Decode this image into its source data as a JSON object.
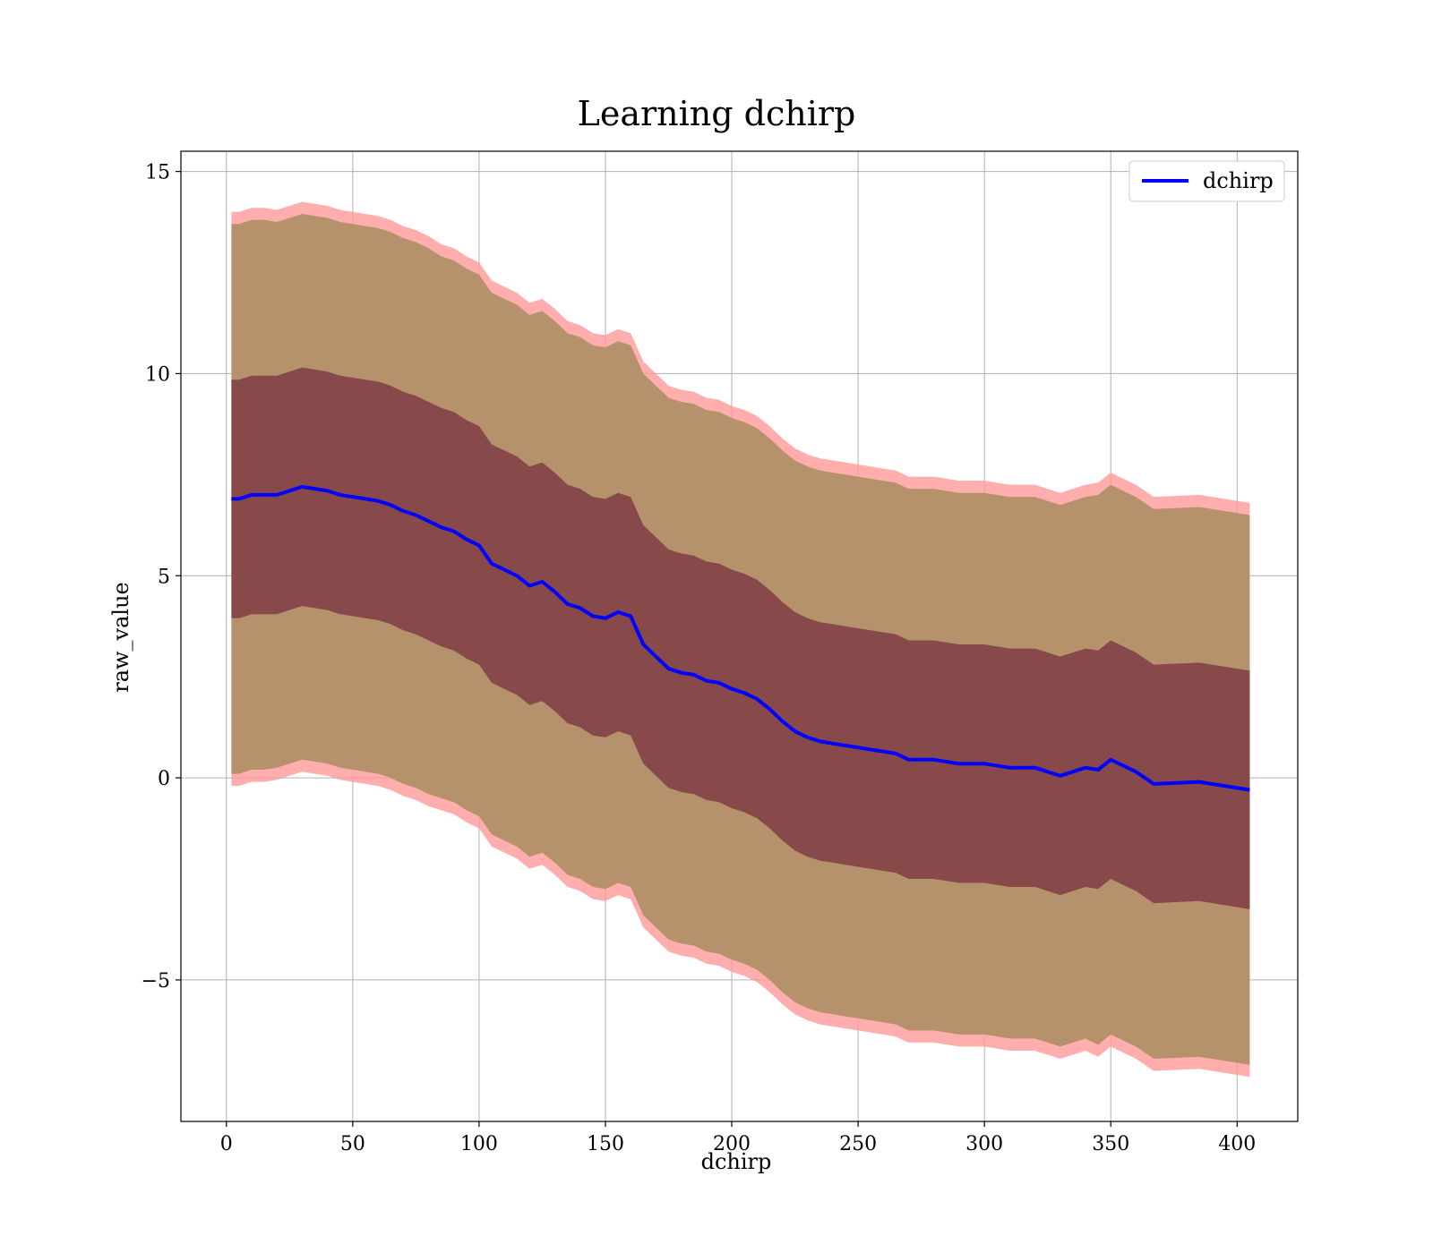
{
  "chart_data": {
    "type": "line",
    "title": "Learning dchirp",
    "xlabel": "dchirp",
    "ylabel": "raw_value",
    "xlim": [
      -18,
      424
    ],
    "ylim": [
      -8.5,
      15.5
    ],
    "xticks": [
      0,
      50,
      100,
      150,
      200,
      250,
      300,
      350,
      400
    ],
    "xtick_labels": [
      "0",
      "50",
      "100",
      "150",
      "200",
      "250",
      "300",
      "350",
      "400"
    ],
    "yticks": [
      -5,
      0,
      5,
      10,
      15
    ],
    "ytick_labels": [
      "−5",
      "0",
      "5",
      "10",
      "15"
    ],
    "grid": true,
    "legend": {
      "position": "top-right",
      "entries": [
        "dchirp"
      ]
    },
    "colors": {
      "line": "#0000ff",
      "outer_band": "#ff9999",
      "middle_band": "#b5926b",
      "inner_band": "#7a3040"
    },
    "series": [
      {
        "name": "dchirp",
        "x": [
          2,
          5,
          10,
          15,
          20,
          25,
          30,
          35,
          40,
          45,
          50,
          55,
          60,
          65,
          70,
          75,
          80,
          85,
          90,
          95,
          100,
          105,
          110,
          115,
          120,
          125,
          130,
          135,
          140,
          145,
          150,
          155,
          160,
          165,
          170,
          175,
          180,
          185,
          190,
          195,
          200,
          205,
          210,
          215,
          220,
          225,
          230,
          235,
          240,
          245,
          250,
          255,
          260,
          265,
          270,
          280,
          290,
          300,
          310,
          320,
          330,
          340,
          345,
          350,
          360,
          367,
          385,
          405
        ],
        "y": [
          6.9,
          6.9,
          7.0,
          7.0,
          7.0,
          7.1,
          7.2,
          7.15,
          7.1,
          7.0,
          6.95,
          6.9,
          6.85,
          6.75,
          6.6,
          6.5,
          6.35,
          6.2,
          6.1,
          5.9,
          5.75,
          5.3,
          5.15,
          5.0,
          4.75,
          4.85,
          4.6,
          4.3,
          4.2,
          4.0,
          3.95,
          4.1,
          4.0,
          3.3,
          3.0,
          2.7,
          2.6,
          2.55,
          2.4,
          2.35,
          2.2,
          2.1,
          1.95,
          1.7,
          1.4,
          1.15,
          1.0,
          0.9,
          0.85,
          0.8,
          0.75,
          0.7,
          0.65,
          0.6,
          0.45,
          0.45,
          0.35,
          0.35,
          0.25,
          0.25,
          0.05,
          0.25,
          0.2,
          0.45,
          0.15,
          -0.15,
          -0.1,
          -0.3
        ]
      }
    ],
    "bands": [
      {
        "sigma": 3,
        "half_width": [
          7.1,
          7.1,
          7.1,
          7.1,
          7.05,
          7.05,
          7.05,
          7.05,
          7.05,
          7.05,
          7.05,
          7.05,
          7.05,
          7.05,
          7.05,
          7.05,
          7.05,
          7.0,
          7.0,
          7.0,
          7.0,
          7.0,
          7.0,
          7.0,
          7.0,
          7.0,
          7.0,
          7.0,
          7.0,
          7.0,
          7.0,
          7.0,
          7.0,
          7.0,
          7.0,
          7.0,
          7.0,
          7.0,
          7.0,
          7.0,
          7.0,
          7.0,
          7.0,
          7.0,
          7.0,
          7.0,
          7.0,
          7.0,
          7.0,
          7.0,
          7.0,
          7.0,
          7.0,
          7.0,
          7.0,
          7.0,
          7.0,
          7.0,
          7.0,
          7.0,
          7.0,
          7.0,
          7.1,
          7.1,
          7.1,
          7.1,
          7.1,
          7.1
        ]
      },
      {
        "sigma": 2.9,
        "half_width": [
          6.8,
          6.8,
          6.8,
          6.8,
          6.75,
          6.75,
          6.75,
          6.75,
          6.75,
          6.75,
          6.75,
          6.75,
          6.75,
          6.75,
          6.75,
          6.75,
          6.75,
          6.7,
          6.7,
          6.7,
          6.7,
          6.7,
          6.7,
          6.7,
          6.7,
          6.7,
          6.7,
          6.7,
          6.7,
          6.7,
          6.7,
          6.7,
          6.7,
          6.7,
          6.7,
          6.7,
          6.7,
          6.7,
          6.7,
          6.7,
          6.7,
          6.7,
          6.7,
          6.7,
          6.7,
          6.7,
          6.7,
          6.7,
          6.7,
          6.7,
          6.7,
          6.7,
          6.7,
          6.7,
          6.7,
          6.7,
          6.7,
          6.7,
          6.7,
          6.7,
          6.7,
          6.7,
          6.8,
          6.8,
          6.8,
          6.8,
          6.8,
          6.8
        ]
      },
      {
        "sigma": 1,
        "half_width": [
          2.95,
          2.95,
          2.95,
          2.95,
          2.95,
          2.95,
          2.95,
          2.95,
          2.95,
          2.95,
          2.95,
          2.95,
          2.95,
          2.95,
          2.95,
          2.95,
          2.95,
          2.95,
          2.95,
          2.95,
          2.95,
          2.95,
          2.95,
          2.95,
          2.95,
          2.95,
          2.95,
          2.95,
          2.95,
          2.95,
          2.95,
          2.95,
          2.95,
          2.95,
          2.95,
          2.95,
          2.95,
          2.95,
          2.95,
          2.95,
          2.95,
          2.95,
          2.95,
          2.95,
          2.95,
          2.95,
          2.95,
          2.95,
          2.95,
          2.95,
          2.95,
          2.95,
          2.95,
          2.95,
          2.95,
          2.95,
          2.95,
          2.95,
          2.95,
          2.95,
          2.95,
          2.95,
          2.95,
          2.95,
          2.95,
          2.95,
          2.95,
          2.95
        ]
      }
    ]
  }
}
